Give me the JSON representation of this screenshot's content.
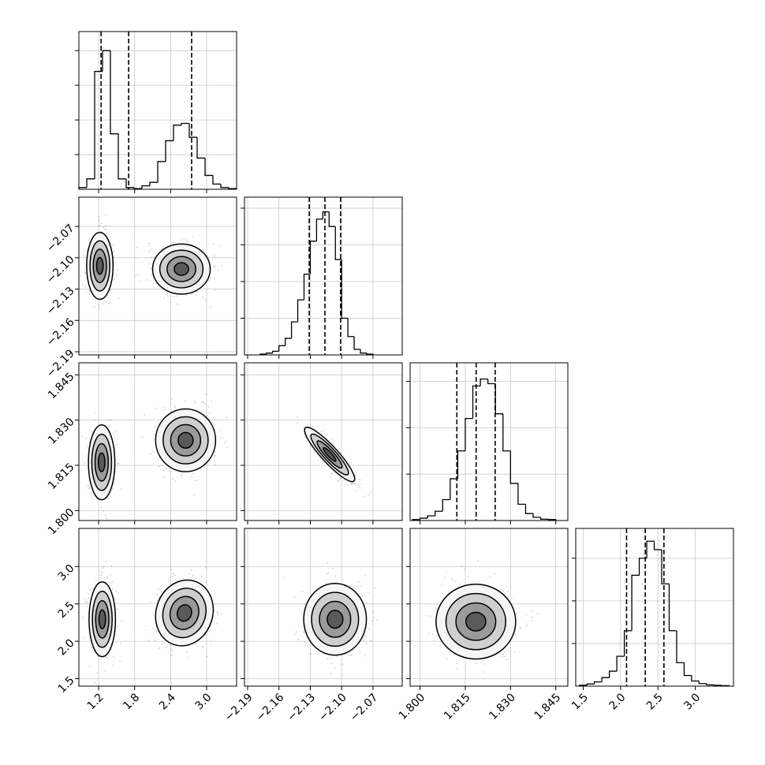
{
  "chart_data": {
    "type": "corner",
    "color": "#000000",
    "grid": true,
    "params": [
      {
        "lim": [
          0.87,
          3.5
        ],
        "ticks": [
          1.2,
          1.8,
          2.4,
          {
            "value": 3,
            "label": "3.0"
          }
        ]
      },
      {
        "lim": [
          -2.193,
          -2.042
        ],
        "ticks": [
          {
            "value": -2.19,
            "label": "−2.19"
          },
          {
            "value": -2.16,
            "label": "−2.16"
          },
          {
            "value": -2.13,
            "label": "−2.13"
          },
          {
            "value": -2.1,
            "label": "−2.10"
          },
          {
            "value": -2.07,
            "label": "−2.07"
          }
        ]
      },
      {
        "lim": [
          1.7967,
          1.849
        ],
        "ticks": [
          {
            "value": 1.8,
            "label": "1.800"
          },
          1.815,
          {
            "value": 1.83,
            "label": "1.830"
          },
          1.845
        ]
      },
      {
        "lim": [
          1.4,
          3.51
        ],
        "ticks": [
          1.5,
          {
            "value": 2,
            "label": "2.0"
          },
          2.5,
          {
            "value": 3,
            "label": "3.0"
          }
        ]
      }
    ],
    "histograms": [
      {
        "bins": [
          0.87,
          1.0015,
          1.133,
          1.2645,
          1.396,
          1.5275,
          1.659,
          1.7905,
          1.922,
          2.0535,
          2.185,
          2.3165,
          2.448,
          2.5795,
          2.711,
          2.8425,
          2.974,
          3.1055,
          3.237,
          3.3685,
          3.5
        ],
        "counts": [
          0.05,
          0.3,
          3.4,
          4.0,
          1.6,
          0.3,
          0.05,
          0.02,
          0.1,
          0.2,
          0.8,
          1.4,
          1.85,
          1.9,
          1.5,
          0.9,
          0.4,
          0.15,
          0.05,
          0.02
        ],
        "ylim": [
          0,
          4.55
        ],
        "yticks": [
          1,
          2,
          3,
          4
        ],
        "quantiles": [
          1.24,
          1.7,
          2.75
        ]
      },
      {
        "bins": [
          -2.178,
          -2.172,
          -2.166,
          -2.16,
          -2.154,
          -2.148,
          -2.142,
          -2.136,
          -2.13,
          -2.124,
          -2.118,
          -2.112,
          -2.106,
          -2.1,
          -2.094,
          -2.088,
          -2.082,
          -2.076,
          -2.07
        ],
        "counts": [
          0.02,
          0.05,
          0.1,
          0.25,
          0.45,
          0.9,
          1.5,
          2.2,
          3.1,
          3.7,
          3.9,
          3.5,
          2.6,
          1.0,
          0.5,
          0.15,
          0.05,
          0.02
        ],
        "ylim": [
          0,
          4.3
        ],
        "yticks": [
          1,
          2,
          3,
          4
        ],
        "quantiles": [
          -2.131,
          -2.116,
          -2.101
        ]
      },
      {
        "bins": [
          1.7975,
          1.8,
          1.8025,
          1.805,
          1.8075,
          1.81,
          1.8125,
          1.815,
          1.8175,
          1.82,
          1.8225,
          1.825,
          1.8275,
          1.83,
          1.8325,
          1.835,
          1.8375,
          1.84,
          1.8425,
          1.845
        ],
        "counts": [
          0.02,
          0.05,
          0.1,
          0.2,
          0.45,
          0.9,
          1.5,
          2.2,
          2.9,
          3.05,
          2.95,
          2.3,
          1.5,
          0.8,
          0.35,
          0.15,
          0.07,
          0.03,
          0.02
        ],
        "ylim": [
          0,
          3.4
        ],
        "yticks": [
          1,
          2,
          3
        ],
        "quantiles": [
          1.8122,
          1.8186,
          1.8249
        ]
      },
      {
        "bins": [
          1.45,
          1.55,
          1.65,
          1.75,
          1.85,
          1.95,
          2.05,
          2.15,
          2.25,
          2.35,
          2.45,
          2.55,
          2.65,
          2.75,
          2.85,
          2.95,
          3.05,
          3.15,
          3.25,
          3.35,
          3.45
        ],
        "counts": [
          0.02,
          0.05,
          0.1,
          0.2,
          0.35,
          0.7,
          1.3,
          2.6,
          3.0,
          3.4,
          3.2,
          2.4,
          1.3,
          0.55,
          0.25,
          0.12,
          0.06,
          0.03,
          0.02,
          0.01
        ],
        "ylim": [
          0,
          3.7
        ],
        "yticks": [
          1,
          2,
          3
        ],
        "quantiles": [
          2.08,
          2.33,
          2.58
        ]
      }
    ],
    "panels": [
      [
        {
          "blobs": [
            {
              "cx": 1.22,
              "cy": -2.1078,
              "sx": 0.11,
              "sy": 0.016,
              "rho": 0
            },
            {
              "cx": 2.58,
              "cy": -2.1108,
              "sx": 0.24,
              "sy": 0.012,
              "rho": 0
            }
          ]
        }
      ],
      [
        {
          "blobs": [
            {
              "cx": 1.25,
              "cy": 1.816,
              "sx": 0.11,
              "sy": 0.0062,
              "rho": 0
            },
            {
              "cx": 2.65,
              "cy": 1.8233,
              "sx": 0.25,
              "sy": 0.0052,
              "rho": 0
            }
          ]
        },
        {
          "blobs": [
            {
              "cx": -2.1115,
              "cy": 1.8186,
              "sx": 0.012,
              "sy": 0.0045,
              "rho": -0.9
            }
          ]
        }
      ],
      [
        {
          "blobs": [
            {
              "cx": 1.26,
              "cy": 2.294,
              "sx": 0.11,
              "sy": 0.25,
              "rho": 0
            },
            {
              "cx": 2.63,
              "cy": 2.379,
              "sx": 0.24,
              "sy": 0.22,
              "rho": 0.1
            }
          ]
        },
        {
          "blobs": [
            {
              "cx": -2.1063,
              "cy": 2.294,
              "sx": 0.015,
              "sy": 0.24,
              "rho": 0
            }
          ]
        },
        {
          "blobs": [
            {
              "cx": 1.8185,
              "cy": 2.263,
              "sx": 0.0066,
              "sy": 0.25,
              "rho": 0
            }
          ]
        }
      ]
    ]
  }
}
